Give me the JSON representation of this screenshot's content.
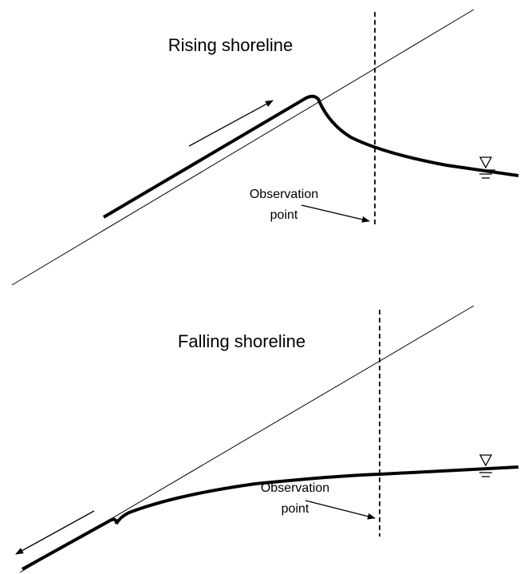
{
  "panels": [
    {
      "title": "Rising shoreline",
      "label_lines": [
        "Observation",
        "point"
      ]
    },
    {
      "title": "Falling shoreline",
      "label_lines": [
        "Observation",
        "point"
      ]
    }
  ]
}
